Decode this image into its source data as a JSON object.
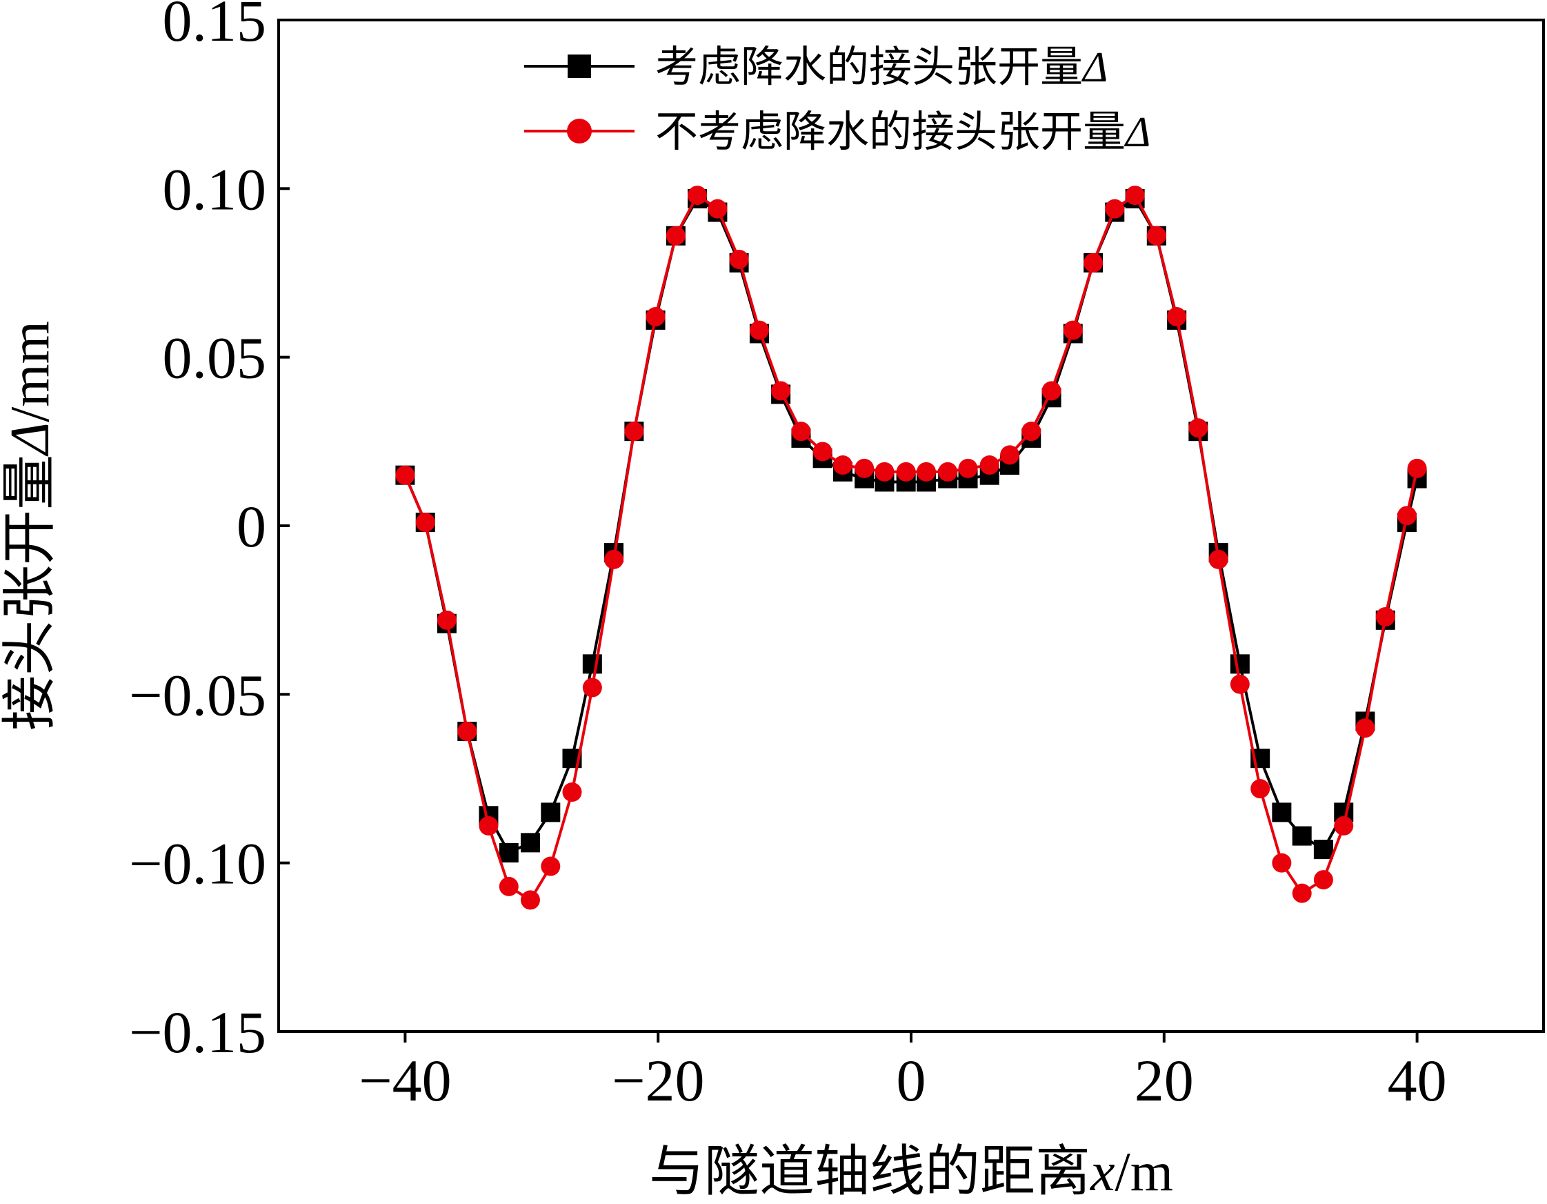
{
  "chart_data": {
    "type": "line",
    "xlabel_prefix": "与隧道轴线的距离",
    "xlabel_var": "x",
    "xlabel_unit": "/m",
    "ylabel_prefix": "接头张开量",
    "ylabel_var": "Δ",
    "ylabel_unit": "/mm",
    "xlim": [
      -50,
      50
    ],
    "ylim": [
      -0.15,
      0.15
    ],
    "xticks": [
      -40,
      -20,
      0,
      20,
      40
    ],
    "xtick_labels": [
      "−40",
      "−20",
      "0",
      "20",
      "40"
    ],
    "yticks": [
      -0.15,
      -0.1,
      -0.05,
      0,
      0.05,
      0.1,
      0.15
    ],
    "ytick_labels": [
      "−0.15",
      "−0.10",
      "−0.05",
      "0",
      "0.05",
      "0.10",
      "0.15"
    ],
    "grid": false,
    "legend_position": "top-center",
    "series": [
      {
        "name_prefix": "考虑降水的接头张开量",
        "name_var": "Δ",
        "color": "#000000",
        "marker": "square",
        "x": [
          -40,
          -38.4,
          -36.7,
          -35.1,
          -33.4,
          -31.8,
          -30.1,
          -28.5,
          -26.8,
          -25.2,
          -23.5,
          -21.9,
          -20.2,
          -18.6,
          -16.9,
          -15.3,
          -13.6,
          -12.0,
          -10.3,
          -8.7,
          -7.0,
          -5.4,
          -3.7,
          -2.1,
          -0.4,
          1.2,
          2.9,
          4.5,
          6.2,
          7.8,
          9.5,
          11.1,
          12.8,
          14.4,
          16.1,
          17.7,
          19.4,
          21.0,
          22.7,
          24.3,
          26.0,
          27.6,
          29.3,
          30.9,
          32.6,
          34.2,
          35.9,
          37.5,
          39.2,
          40
        ],
        "y": [
          0.015,
          0.001,
          -0.029,
          -0.061,
          -0.086,
          -0.097,
          -0.094,
          -0.085,
          -0.069,
          -0.041,
          -0.008,
          0.028,
          0.061,
          0.086,
          0.097,
          0.093,
          0.078,
          0.057,
          0.039,
          0.026,
          0.02,
          0.016,
          0.014,
          0.013,
          0.013,
          0.013,
          0.014,
          0.014,
          0.015,
          0.018,
          0.026,
          0.038,
          0.057,
          0.078,
          0.093,
          0.097,
          0.086,
          0.061,
          0.028,
          -0.008,
          -0.041,
          -0.069,
          -0.085,
          -0.092,
          -0.096,
          -0.085,
          -0.058,
          -0.028,
          0.001,
          0.014
        ]
      },
      {
        "name_prefix": "不考虑降水的接头张开量",
        "name_var": "Δ",
        "color": "#e8000b",
        "marker": "circle",
        "x": [
          -40,
          -38.4,
          -36.7,
          -35.1,
          -33.4,
          -31.8,
          -30.1,
          -28.5,
          -26.8,
          -25.2,
          -23.5,
          -21.9,
          -20.2,
          -18.6,
          -16.9,
          -15.3,
          -13.6,
          -12.0,
          -10.3,
          -8.7,
          -7.0,
          -5.4,
          -3.7,
          -2.1,
          -0.4,
          1.2,
          2.9,
          4.5,
          6.2,
          7.8,
          9.5,
          11.1,
          12.8,
          14.4,
          16.1,
          17.7,
          19.4,
          21.0,
          22.7,
          24.3,
          26.0,
          27.6,
          29.3,
          30.9,
          32.6,
          34.2,
          35.9,
          37.5,
          39.2,
          40
        ],
        "y": [
          0.015,
          0.001,
          -0.028,
          -0.061,
          -0.089,
          -0.107,
          -0.111,
          -0.101,
          -0.079,
          -0.048,
          -0.01,
          0.028,
          0.062,
          0.086,
          0.098,
          0.094,
          0.079,
          0.058,
          0.04,
          0.028,
          0.022,
          0.018,
          0.017,
          0.016,
          0.016,
          0.016,
          0.016,
          0.017,
          0.018,
          0.021,
          0.028,
          0.04,
          0.058,
          0.078,
          0.094,
          0.098,
          0.086,
          0.062,
          0.029,
          -0.01,
          -0.047,
          -0.078,
          -0.1,
          -0.109,
          -0.105,
          -0.089,
          -0.06,
          -0.027,
          0.003,
          0.017
        ]
      }
    ]
  }
}
